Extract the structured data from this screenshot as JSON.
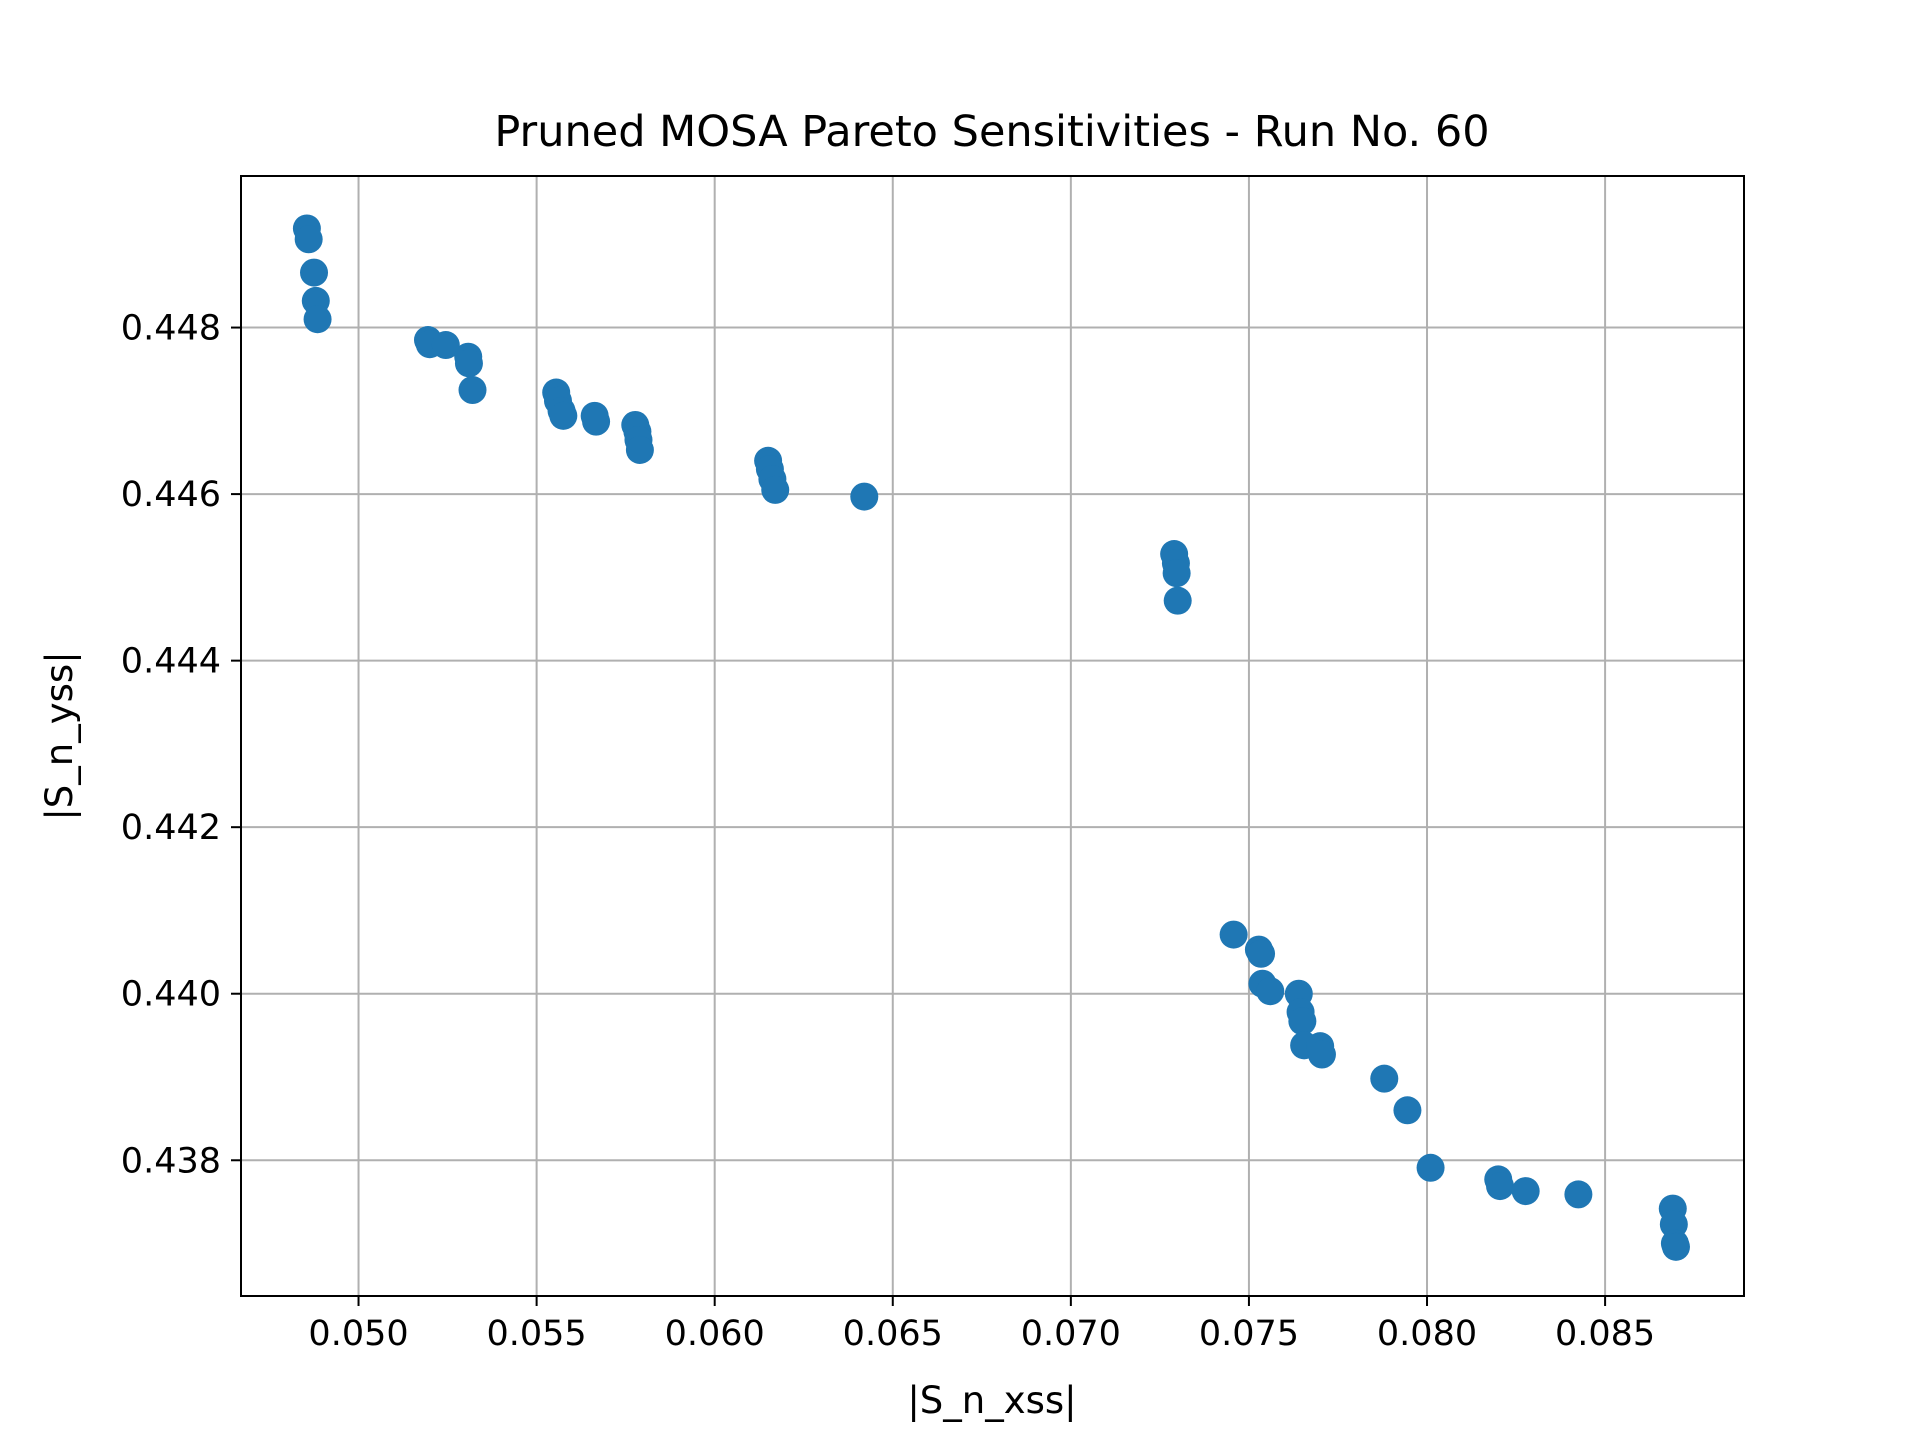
{
  "chart_data": {
    "type": "scatter",
    "title": "Pruned MOSA Pareto Sensitivities - Run No. 60",
    "xlabel": "|S_n_xss|",
    "ylabel": "|S_n_yss|",
    "xlim": [
      0.0467,
      0.0889
    ],
    "ylim": [
      0.43637,
      0.44982
    ],
    "xticks": [
      0.05,
      0.055,
      0.06,
      0.065,
      0.07,
      0.075,
      0.08,
      0.085
    ],
    "xtick_labels": [
      "0.050",
      "0.055",
      "0.060",
      "0.065",
      "0.070",
      "0.075",
      "0.080",
      "0.085"
    ],
    "yticks": [
      0.438,
      0.44,
      0.442,
      0.444,
      0.446,
      0.448
    ],
    "ytick_labels": [
      "0.438",
      "0.440",
      "0.442",
      "0.444",
      "0.446",
      "0.448"
    ],
    "grid": true,
    "marker_color": "#1f77b4",
    "series": [
      {
        "points": [
          [
            0.04855,
            0.44919
          ],
          [
            0.0486,
            0.44906
          ],
          [
            0.04875,
            0.44866
          ],
          [
            0.0488,
            0.44832
          ],
          [
            0.04885,
            0.4481
          ],
          [
            0.05195,
            0.44785
          ],
          [
            0.052,
            0.4478
          ],
          [
            0.05245,
            0.44779
          ],
          [
            0.05308,
            0.44765
          ],
          [
            0.0531,
            0.44757
          ],
          [
            0.0532,
            0.44725
          ],
          [
            0.05555,
            0.44722
          ],
          [
            0.0556,
            0.44712
          ],
          [
            0.0557,
            0.447
          ],
          [
            0.05575,
            0.44694
          ],
          [
            0.05663,
            0.44694
          ],
          [
            0.05667,
            0.44687
          ],
          [
            0.05777,
            0.44683
          ],
          [
            0.05783,
            0.44675
          ],
          [
            0.05786,
            0.44665
          ],
          [
            0.0579,
            0.44653
          ],
          [
            0.0615,
            0.4464
          ],
          [
            0.06155,
            0.4463
          ],
          [
            0.06162,
            0.44618
          ],
          [
            0.0617,
            0.44605
          ],
          [
            0.0642,
            0.44597
          ],
          [
            0.0729,
            0.44528
          ],
          [
            0.07295,
            0.44517
          ],
          [
            0.07297,
            0.44505
          ],
          [
            0.073,
            0.44472
          ],
          [
            0.07457,
            0.44071
          ],
          [
            0.07528,
            0.44053
          ],
          [
            0.07534,
            0.44048
          ],
          [
            0.07538,
            0.44012
          ],
          [
            0.0756,
            0.44003
          ],
          [
            0.0764,
            0.44
          ],
          [
            0.07645,
            0.43978
          ],
          [
            0.0765,
            0.43967
          ],
          [
            0.07655,
            0.43938
          ],
          [
            0.077,
            0.43937
          ],
          [
            0.07705,
            0.43927
          ],
          [
            0.0788,
            0.43898
          ],
          [
            0.07945,
            0.4386
          ],
          [
            0.0801,
            0.43791
          ],
          [
            0.082,
            0.43777
          ],
          [
            0.08205,
            0.43769
          ],
          [
            0.08277,
            0.43763
          ],
          [
            0.08425,
            0.43759
          ],
          [
            0.0869,
            0.43742
          ],
          [
            0.08693,
            0.43723
          ],
          [
            0.08696,
            0.437
          ],
          [
            0.08699,
            0.43696
          ]
        ]
      }
    ]
  }
}
